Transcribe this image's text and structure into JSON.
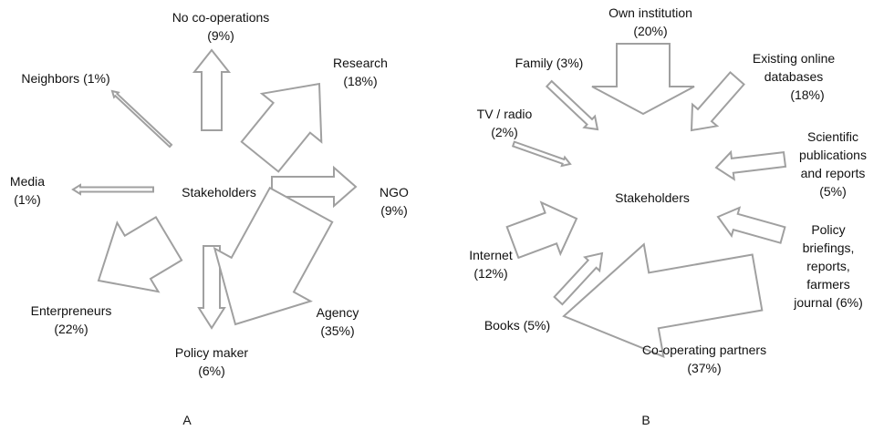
{
  "panel_a": {
    "center": "Stakeholders",
    "caption": "A",
    "items": [
      {
        "label": "No co-operations",
        "percent": "(9%)"
      },
      {
        "label": "Research",
        "percent": "(18%)"
      },
      {
        "label": "Neighbors (1%)"
      },
      {
        "label": "Media",
        "percent": "(1%)"
      },
      {
        "label": "NGO",
        "percent": "(9%)"
      },
      {
        "label": "Enterpreneurs",
        "percent": "(22%)"
      },
      {
        "label": "Policy maker",
        "percent": "(6%)"
      },
      {
        "label": "Agency",
        "percent": "(35%)"
      }
    ]
  },
  "panel_b": {
    "center": "Stakeholders",
    "caption": "B",
    "items": [
      {
        "label": "Own institution",
        "percent": "(20%)"
      },
      {
        "label": "Family (3%)"
      },
      {
        "label": "Existing online",
        "label2": "databases",
        "percent": "(18%)"
      },
      {
        "label": "TV / radio",
        "percent": "(2%)"
      },
      {
        "label": "Scientific",
        "label2": "publications",
        "label3": "and reports",
        "percent": "(5%)"
      },
      {
        "label": "Policy",
        "label2": "briefings,",
        "label3": "reports,",
        "label4": "farmers",
        "label5": "journal (6%)"
      },
      {
        "label": "Internet",
        "percent": "(12%)"
      },
      {
        "label": "Books (5%)"
      },
      {
        "label": "Co-operating partners",
        "percent": "(37%)"
      }
    ]
  }
}
